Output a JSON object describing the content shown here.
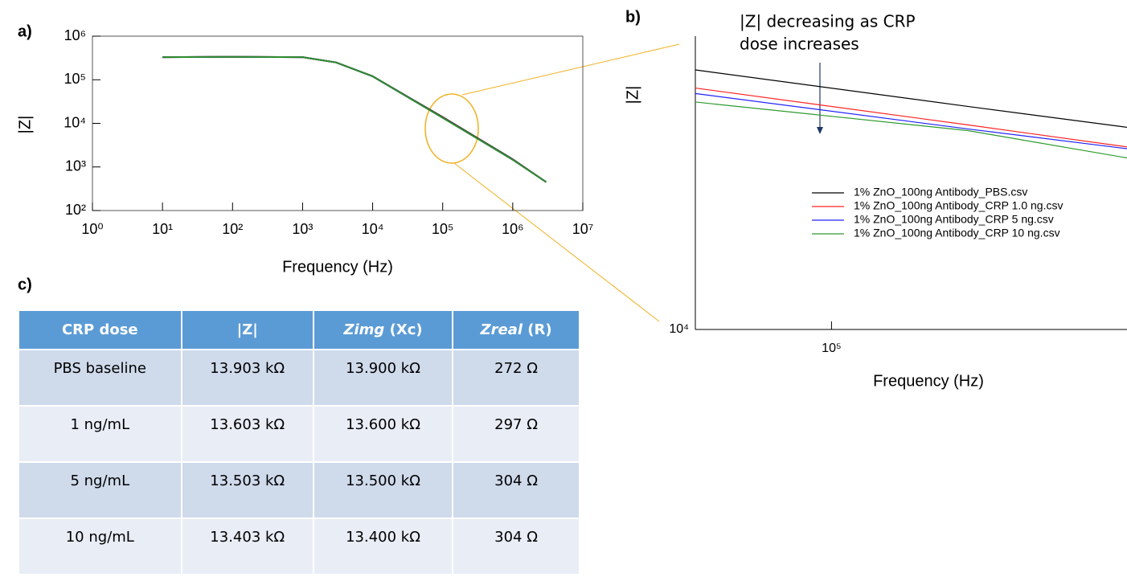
{
  "panel_labels": [
    "a)",
    "b)",
    "c)"
  ],
  "chart_data": [
    {
      "type": "line",
      "x_label": "Frequency (Hz)",
      "y_label": "|Z|",
      "log_x": true,
      "log_y": true,
      "x": [
        10,
        100,
        1000,
        3000,
        10000,
        100000,
        1000000,
        3000000
      ],
      "series": [
        {
          "color": "#000000",
          "values": [
            330000,
            335000,
            330000,
            250000,
            120000,
            13900,
            1500,
            450
          ]
        },
        {
          "color": "#e03030",
          "values": [
            330000,
            335000,
            330000,
            250000,
            120000,
            13600,
            1480,
            450
          ]
        },
        {
          "color": "#2030d0",
          "values": [
            330000,
            335000,
            330000,
            250000,
            120000,
            13500,
            1470,
            450
          ]
        },
        {
          "color": "#2e8b2e",
          "values": [
            330000,
            335000,
            330000,
            250000,
            120000,
            13400,
            1460,
            450
          ]
        }
      ],
      "xlim": [
        1,
        10000000
      ],
      "xticks": [
        {
          "value": 1,
          "label": "10⁰"
        },
        {
          "value": 10,
          "label": "10¹"
        },
        {
          "value": 100,
          "label": "10²"
        },
        {
          "value": 1000,
          "label": "10³"
        },
        {
          "value": 10000,
          "label": "10⁴"
        },
        {
          "value": 100000,
          "label": "10⁵"
        },
        {
          "value": 1000000,
          "label": "10⁶"
        },
        {
          "value": 10000000,
          "label": "10⁷"
        }
      ],
      "ylim": [
        100,
        1000000
      ],
      "yticks": [
        {
          "value": 100,
          "label": "10²"
        },
        {
          "value": 1000,
          "label": "10³"
        },
        {
          "value": 10000,
          "label": "10⁴"
        },
        {
          "value": 100000,
          "label": "10⁵"
        },
        {
          "value": 1000000,
          "label": "10⁶"
        }
      ]
    },
    {
      "type": "line",
      "x_label": "Frequency (Hz)",
      "y_label": "|Z|",
      "log_x": true,
      "log_y": true,
      "annotation": [
        "|Z| decreasing as CRP",
        "dose increases"
      ],
      "legend": "right",
      "x": [
        50000,
        200000,
        450000
      ],
      "series": [
        {
          "name": "1% ZnO_100ng Antibody_PBS.csv",
          "color": "#000000",
          "values": [
            34100,
            28700,
            26000
          ]
        },
        {
          "name": "1% ZnO_100ng Antibody_CRP 1.0 ng.csv",
          "color": "#ff2020",
          "values": [
            31300,
            26300,
            23700
          ]
        },
        {
          "name": "1% ZnO_100ng Antibody_CRP 5 ng.csv",
          "color": "#2020ff",
          "values": [
            30500,
            25800,
            23500
          ]
        },
        {
          "name": "1% ZnO_100ng Antibody_CRP 10 ng.csv",
          "color": "#2e9a2e",
          "values": [
            29300,
            25600,
            22500
          ]
        }
      ],
      "xlim": [
        50000,
        450000
      ],
      "xticks": [
        {
          "value": 100000,
          "label": "10⁵"
        }
      ],
      "ylim": [
        10000,
        40000
      ],
      "yticks": [
        {
          "value": 10000,
          "label": "10⁴"
        }
      ]
    }
  ],
  "table": {
    "header": [
      [
        "CRP dose"
      ],
      [
        "|Z|"
      ],
      [
        "Zimg",
        " (Xc)"
      ],
      [
        "Zreal",
        " (R)"
      ]
    ],
    "rows": [
      [
        "PBS baseline",
        "13.903 kΩ",
        "13.900 kΩ",
        "272 Ω"
      ],
      [
        "1 ng/mL",
        "13.603 kΩ",
        "13.600 kΩ",
        "297 Ω"
      ],
      [
        "5 ng/mL",
        "13.503 kΩ",
        "13.500 kΩ",
        "304 Ω"
      ],
      [
        "10 ng/mL",
        "13.403 kΩ",
        "13.400 kΩ",
        "304 Ω"
      ]
    ]
  }
}
